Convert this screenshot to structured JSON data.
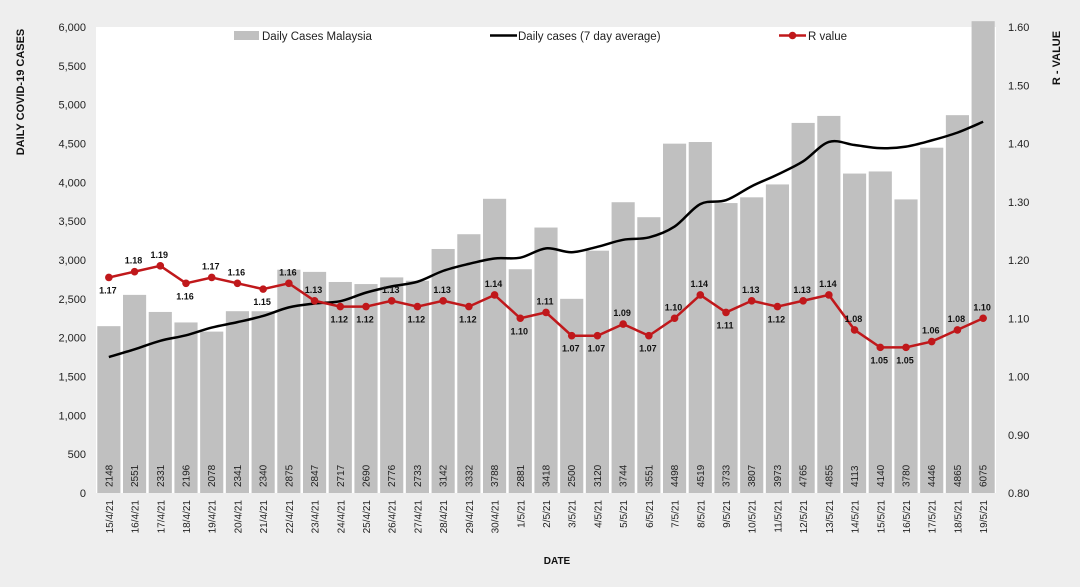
{
  "chart_data": {
    "type": "bar",
    "categories": [
      "15/4/21",
      "16/4/21",
      "17/4/21",
      "18/4/21",
      "19/4/21",
      "20/4/21",
      "21/4/21",
      "22/4/21",
      "23/4/21",
      "24/4/21",
      "25/4/21",
      "26/4/21",
      "27/4/21",
      "28/4/21",
      "29/4/21",
      "30/4/21",
      "1/5/21",
      "2/5/21",
      "3/5/21",
      "4/5/21",
      "5/5/21",
      "6/5/21",
      "7/5/21",
      "8/5/21",
      "9/5/21",
      "10/5/21",
      "11/5/21",
      "12/5/21",
      "13/5/21",
      "14/5/21",
      "15/5/21",
      "16/5/21",
      "17/5/21",
      "18/5/21",
      "19/5/21"
    ],
    "series": [
      {
        "name": "Daily Cases Malaysia",
        "type": "bar",
        "axis": "left",
        "color": "#c0c0c0",
        "values": [
          2148,
          2551,
          2331,
          2196,
          2078,
          2341,
          2340,
          2875,
          2847,
          2717,
          2690,
          2776,
          2733,
          3142,
          3332,
          3788,
          2881,
          3418,
          2500,
          3120,
          3744,
          3551,
          4498,
          4519,
          3733,
          3807,
          3973,
          4765,
          4855,
          4113,
          4140,
          3780,
          4446,
          4865,
          6075
        ],
        "labels": [
          "2148",
          "2551",
          "2331",
          "2196",
          "2078",
          "2341",
          "2340",
          "2875",
          "2847",
          "2717",
          "2690",
          "2776",
          "2733",
          "3142",
          "3332",
          "3788",
          "2881",
          "3418",
          "2500",
          "3120",
          "3744",
          "3551",
          "4498",
          "4519",
          "3733",
          "3807",
          "3973",
          "4765",
          "4855",
          "4113",
          "4140",
          "3780",
          "4446",
          "4865",
          "6075"
        ]
      },
      {
        "name": "Daily cases (7 day average)",
        "type": "line",
        "axis": "left",
        "color": "#000000",
        "values": [
          1750,
          1850,
          1960,
          2030,
          2130,
          2200,
          2280,
          2390,
          2440,
          2470,
          2580,
          2660,
          2720,
          2860,
          2950,
          3020,
          3030,
          3150,
          3100,
          3170,
          3260,
          3290,
          3430,
          3720,
          3770,
          3950,
          4100,
          4270,
          4520,
          4480,
          4440,
          4460,
          4540,
          4640,
          4780
        ]
      },
      {
        "name": "R value",
        "type": "line",
        "axis": "right",
        "color": "#c0181b",
        "values": [
          1.17,
          1.18,
          1.19,
          1.16,
          1.17,
          1.16,
          1.15,
          1.16,
          1.13,
          1.12,
          1.12,
          1.13,
          1.12,
          1.13,
          1.12,
          1.14,
          1.1,
          1.11,
          1.07,
          1.07,
          1.09,
          1.07,
          1.1,
          1.14,
          1.11,
          1.13,
          1.12,
          1.13,
          1.14,
          1.08,
          1.05,
          1.05,
          1.06,
          1.08,
          1.1
        ],
        "labels": [
          "1.17",
          "1.18",
          "1.19",
          "1.16",
          "1.17",
          "1.16",
          "1.15",
          "1.16",
          "1.13",
          "1.12",
          "1.12",
          "1.13",
          "1.12",
          "1.13",
          "1.12",
          "1.14",
          "1.10",
          "1.11",
          "1.07",
          "1.07",
          "1.09",
          "1.07",
          "1.10",
          "1.14",
          "1.11",
          "1.13",
          "1.12",
          "1.13",
          "1.14",
          "1.08",
          "1.05",
          "1.05",
          "1.06",
          "1.08",
          "1.10"
        ]
      }
    ],
    "xlabel": "DATE",
    "ylabel": "DAILY COVID-19 CASES",
    "y2label": "R - VALUE",
    "ylim": [
      0,
      6000
    ],
    "y2lim": [
      0.8,
      1.6
    ],
    "yticks": [
      "0",
      "500",
      "1,000",
      "1,500",
      "2,000",
      "2,500",
      "3,000",
      "3,500",
      "4,000",
      "4,500",
      "5,000",
      "5,500",
      "6,000"
    ],
    "y2ticks": [
      "0.80",
      "0.90",
      "1.00",
      "1.10",
      "1.20",
      "1.30",
      "1.40",
      "1.50",
      "1.60"
    ],
    "grid": false,
    "legend_position": "top"
  }
}
